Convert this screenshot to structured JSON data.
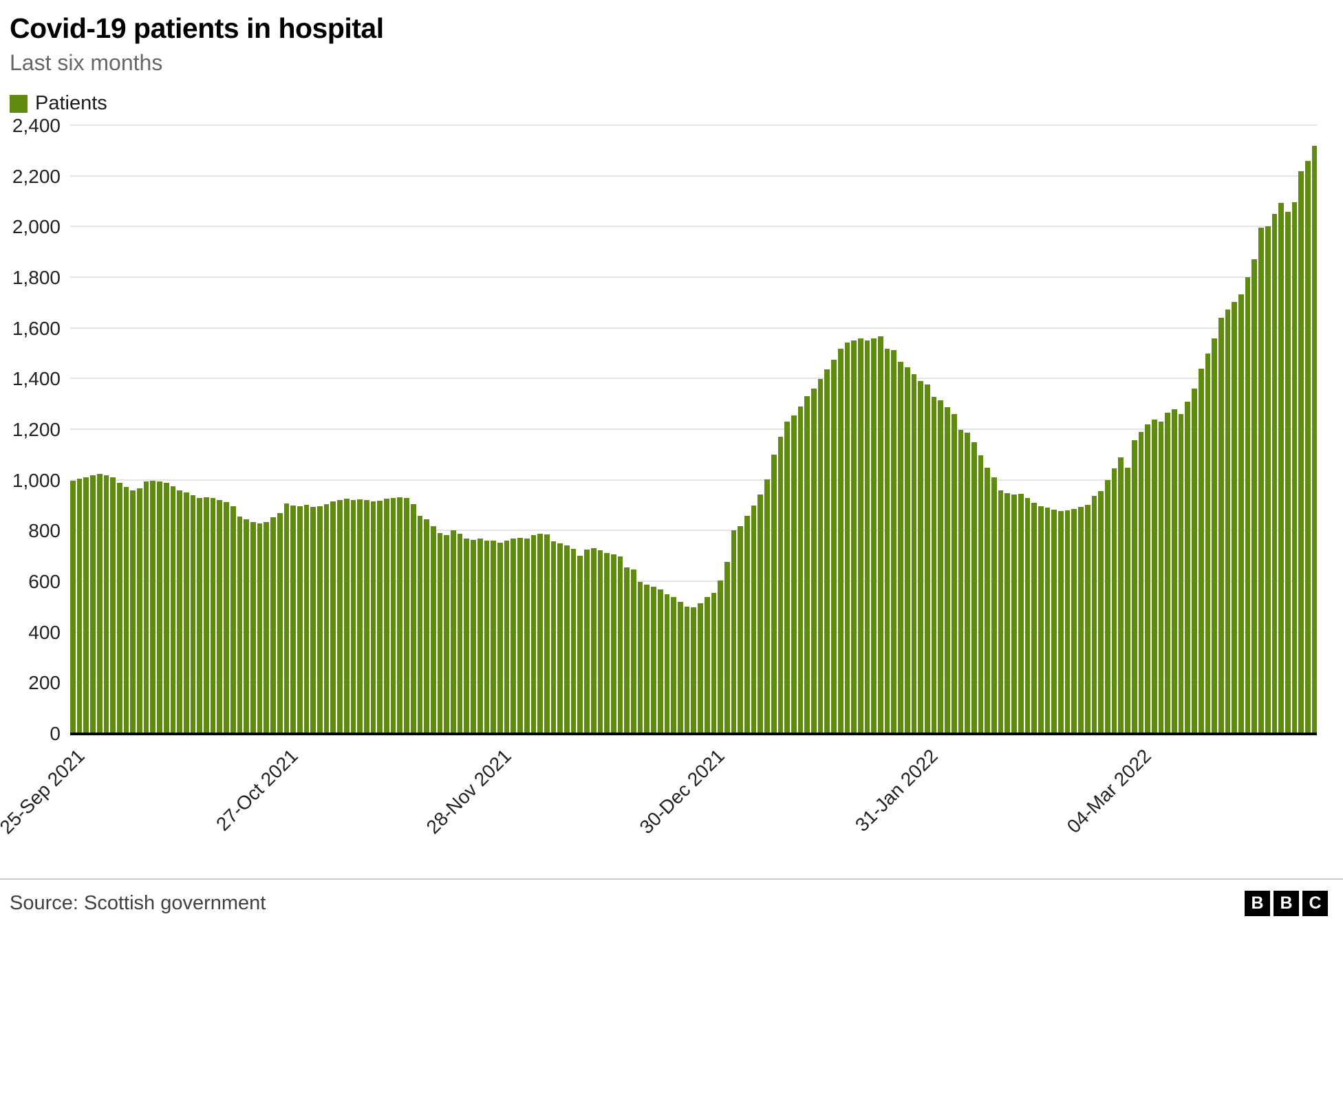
{
  "header": {
    "title": "Covid-19 patients in hospital",
    "subtitle": "Last six months"
  },
  "footer": {
    "source": "Source: Scottish government",
    "logo_letters": [
      "B",
      "B",
      "C"
    ]
  },
  "chart_data": {
    "type": "bar",
    "title": "Covid-19 patients in hospital",
    "subtitle": "Last six months",
    "series_name": "Patients",
    "bar_color": "#5f8c0e",
    "grid": "horizontal",
    "legend_position": "top-left",
    "xlabel": "",
    "ylabel": "",
    "ylim": [
      0,
      2400
    ],
    "y_ticks": [
      0,
      200,
      400,
      600,
      800,
      1000,
      1200,
      1400,
      1600,
      1800,
      2000,
      2200,
      2400
    ],
    "y_tick_labels": [
      "0",
      "200",
      "400",
      "600",
      "800",
      "1,000",
      "1,200",
      "1,400",
      "1,600",
      "1,800",
      "2,000",
      "2,200",
      "2,400"
    ],
    "x_tick_labels": [
      "25-Sep 2021",
      "27-Oct 2021",
      "28-Nov 2021",
      "30-Dec 2021",
      "31-Jan 2022",
      "04-Mar 2022"
    ],
    "x_tick_indices": [
      0,
      32,
      64,
      96,
      128,
      160
    ],
    "values": [
      1000,
      1006,
      1012,
      1020,
      1025,
      1022,
      1014,
      992,
      975,
      962,
      968,
      996,
      1000,
      997,
      990,
      978,
      962,
      954,
      942,
      930,
      934,
      930,
      924,
      916,
      900,
      858,
      846,
      836,
      830,
      836,
      856,
      872,
      910,
      902,
      898,
      904,
      896,
      900,
      906,
      918,
      924,
      928,
      924,
      927,
      922,
      918,
      920,
      928,
      930,
      933,
      930,
      906,
      862,
      846,
      820,
      792,
      786,
      804,
      790,
      772,
      766,
      770,
      762,
      764,
      756,
      764,
      770,
      774,
      770,
      784,
      790,
      788,
      760,
      752,
      744,
      730,
      702,
      728,
      733,
      724,
      714,
      708,
      700,
      656,
      648,
      600,
      588,
      582,
      570,
      552,
      540,
      520,
      502,
      500,
      516,
      540,
      556,
      605,
      680,
      805,
      820,
      862,
      902,
      945,
      1005,
      1102,
      1172,
      1232,
      1256,
      1292,
      1332,
      1362,
      1402,
      1440,
      1476,
      1520,
      1546,
      1552,
      1560,
      1553,
      1560,
      1570,
      1520,
      1516,
      1470,
      1448,
      1420,
      1392,
      1380,
      1330,
      1318,
      1290,
      1262,
      1200,
      1190,
      1150,
      1100,
      1050,
      1012,
      962,
      950,
      945,
      948,
      930,
      912,
      900,
      892,
      885,
      880,
      882,
      888,
      896,
      905,
      940,
      958,
      1002,
      1048,
      1092,
      1052,
      1160,
      1192,
      1222,
      1242,
      1232,
      1268,
      1282,
      1262,
      1312,
      1362,
      1442,
      1502,
      1562,
      1642,
      1674,
      1706,
      1736,
      1804,
      1872,
      1998,
      2004,
      2052,
      2096,
      2060,
      2100,
      2222,
      2262,
      2322
    ]
  }
}
